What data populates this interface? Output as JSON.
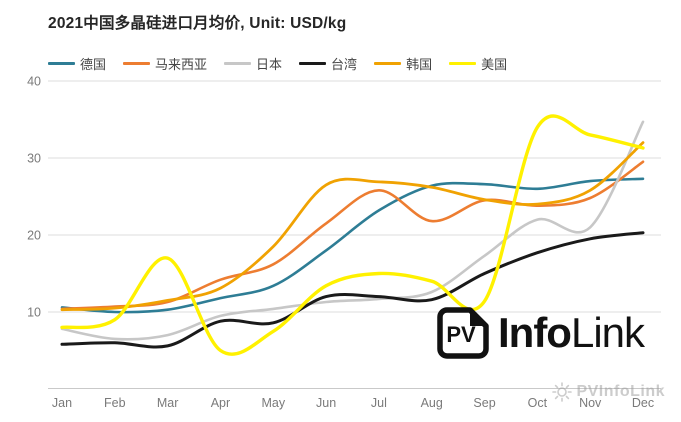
{
  "title": "2021中国多晶硅进口月均价, Unit: USD/kg",
  "logo": {
    "mark": "PV",
    "name_bold": "Info",
    "name_light": "Link"
  },
  "watermark": "PVInfoLink",
  "chart_data": {
    "type": "line",
    "title": "2021中国多晶硅进口月均价",
    "unit_label": "Unit: USD/kg",
    "categories": [
      "Jan",
      "Feb",
      "Mar",
      "Apr",
      "May",
      "Jun",
      "Jul",
      "Aug",
      "Sep",
      "Oct",
      "Nov",
      "Dec"
    ],
    "y_ticks": [
      10,
      20,
      30,
      40
    ],
    "ylim": [
      0,
      40
    ],
    "grid": "horizontal",
    "legend_position": "top",
    "series": [
      {
        "name": "德国",
        "color": "#2E7D95",
        "values": [
          10.6,
          10.0,
          10.3,
          11.8,
          13.4,
          18.0,
          23.2,
          26.4,
          26.6,
          26.0,
          27.0,
          27.3
        ]
      },
      {
        "name": "马来西亚",
        "color": "#ED7D31",
        "values": [
          10.4,
          10.7,
          11.3,
          14.2,
          16.2,
          21.5,
          25.8,
          21.8,
          24.5,
          23.8,
          24.8,
          29.5
        ]
      },
      {
        "name": "日本",
        "color": "#C7C7C7",
        "values": [
          7.8,
          6.5,
          7.0,
          9.5,
          10.4,
          11.3,
          11.7,
          12.6,
          17.3,
          22.0,
          21.0,
          34.7
        ]
      },
      {
        "name": "台湾",
        "color": "#1A1A1A",
        "values": [
          5.8,
          6.0,
          5.6,
          8.8,
          8.6,
          12.0,
          12.0,
          11.6,
          15.0,
          17.7,
          19.5,
          20.3
        ]
      },
      {
        "name": "韩国",
        "color": "#F0A202",
        "values": [
          10.3,
          10.5,
          11.5,
          13.1,
          18.5,
          26.5,
          26.9,
          26.2,
          24.6,
          24.0,
          25.8,
          32.0
        ]
      },
      {
        "name": "美国",
        "color": "#FFF100",
        "values": [
          8.0,
          9.0,
          17.0,
          5.0,
          7.5,
          13.4,
          15.0,
          14.0,
          11.4,
          34.0,
          33.0,
          31.3
        ]
      }
    ]
  }
}
